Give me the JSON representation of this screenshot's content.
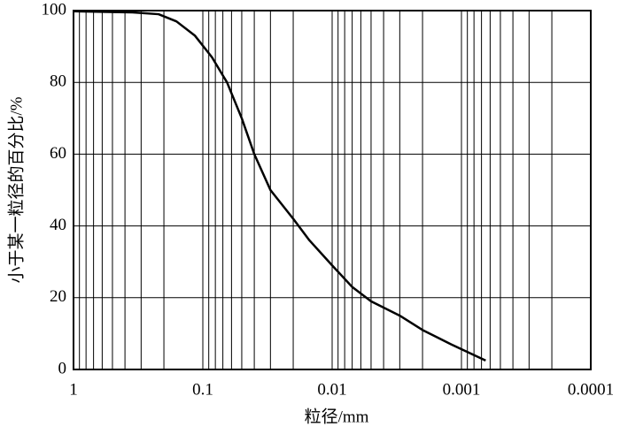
{
  "chart_data": {
    "type": "line",
    "x_label": "粒径/mm",
    "y_label": "小于某一粒径的百分比/%",
    "x": [
      1,
      0.35,
      0.22,
      0.16,
      0.115,
      0.085,
      0.065,
      0.05,
      0.04,
      0.03,
      0.02,
      0.015,
      0.01,
      0.007,
      0.005,
      0.003,
      0.002,
      0.0012,
      0.00065
    ],
    "series": [
      {
        "color": "#000000",
        "values": [
          99.8,
          99.5,
          99,
          97,
          93,
          87,
          80,
          70,
          60,
          50,
          42,
          36,
          29,
          23,
          19,
          15,
          11,
          7,
          2.5
        ]
      }
    ],
    "xlim": [
      1,
      0.0001
    ],
    "xticks": [
      1,
      0.1,
      0.01,
      0.001,
      0.0001
    ],
    "xscale": "log",
    "ylim": [
      0,
      100
    ],
    "yticks": [
      0,
      20,
      40,
      60,
      80,
      100
    ],
    "grid": true,
    "minor_grid": true
  }
}
